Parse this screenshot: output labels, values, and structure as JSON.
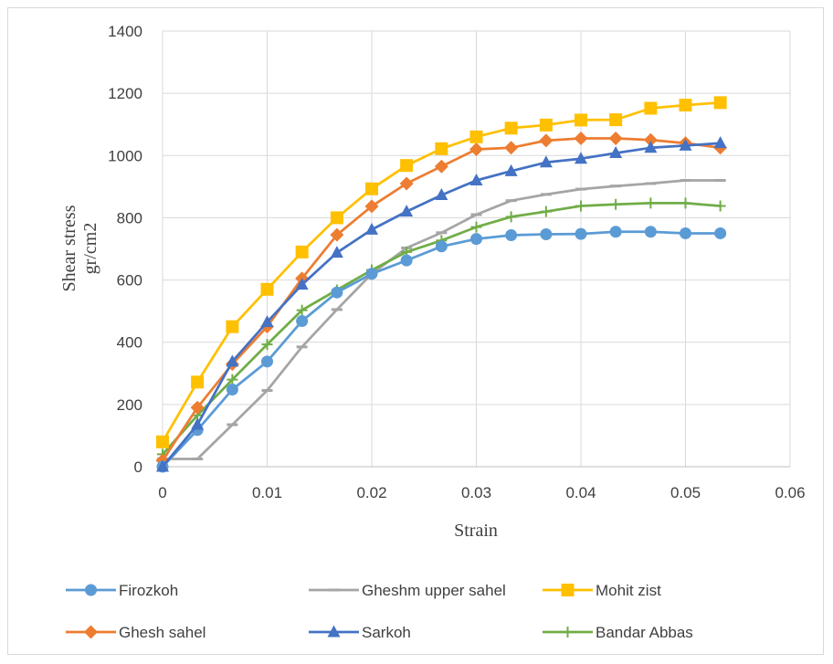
{
  "chart_data": {
    "type": "line",
    "title": "",
    "xlabel": "Strain",
    "ylabel_line1": "Shear stress",
    "ylabel_line2": "gr/cm2",
    "xlim": [
      0,
      0.06
    ],
    "ylim": [
      0,
      1400
    ],
    "x_ticks": [
      0,
      0.01,
      0.02,
      0.03,
      0.04,
      0.05,
      0.06
    ],
    "x_tick_labels": [
      "0",
      "0.01",
      "0.02",
      "0.03",
      "0.04",
      "0.05",
      "0.06"
    ],
    "y_ticks": [
      0,
      200,
      400,
      600,
      800,
      1000,
      1200,
      1400
    ],
    "y_tick_labels": [
      "0",
      "200",
      "400",
      "600",
      "800",
      "1000",
      "1200",
      "1400"
    ],
    "grid": true,
    "legend_position": "bottom",
    "x": [
      0,
      0.00333,
      0.00667,
      0.01,
      0.01333,
      0.01667,
      0.02,
      0.02333,
      0.02667,
      0.03,
      0.03333,
      0.03667,
      0.04,
      0.04333,
      0.04667,
      0.05,
      0.05333
    ],
    "series": [
      {
        "name": "Firozkoh",
        "color": "#5b9bd5",
        "marker": "circle",
        "values": [
          0,
          118,
          248,
          338,
          468,
          560,
          620,
          663,
          708,
          732,
          744,
          747,
          748,
          755,
          755,
          750,
          750
        ]
      },
      {
        "name": "Gheshm upper sahel",
        "color": "#a5a5a5",
        "marker": "dash",
        "values": [
          25,
          25,
          135,
          245,
          385,
          505,
          620,
          703,
          752,
          810,
          855,
          875,
          892,
          902,
          910,
          920,
          920
        ]
      },
      {
        "name": "Mohit zist",
        "color": "#ffc000",
        "marker": "square",
        "values": [
          80,
          272,
          450,
          570,
          690,
          800,
          893,
          968,
          1022,
          1060,
          1088,
          1098,
          1114,
          1115,
          1152,
          1162,
          1170
        ]
      },
      {
        "name": "Ghesh sahel",
        "color": "#ed7d31",
        "marker": "diamond",
        "values": [
          20,
          190,
          330,
          450,
          605,
          745,
          837,
          910,
          965,
          1020,
          1025,
          1048,
          1055,
          1055,
          1050,
          1040,
          1025
        ]
      },
      {
        "name": "Sarkoh",
        "color": "#4472c4",
        "marker": "triangle",
        "values": [
          0,
          135,
          338,
          465,
          585,
          688,
          762,
          820,
          873,
          920,
          950,
          978,
          990,
          1008,
          1025,
          1032,
          1040
        ]
      },
      {
        "name": "Bandar Abbas",
        "color": "#70ad47",
        "marker": "plus",
        "values": [
          40,
          165,
          280,
          393,
          503,
          568,
          632,
          690,
          727,
          770,
          803,
          820,
          838,
          843,
          847,
          847,
          838
        ]
      }
    ]
  }
}
